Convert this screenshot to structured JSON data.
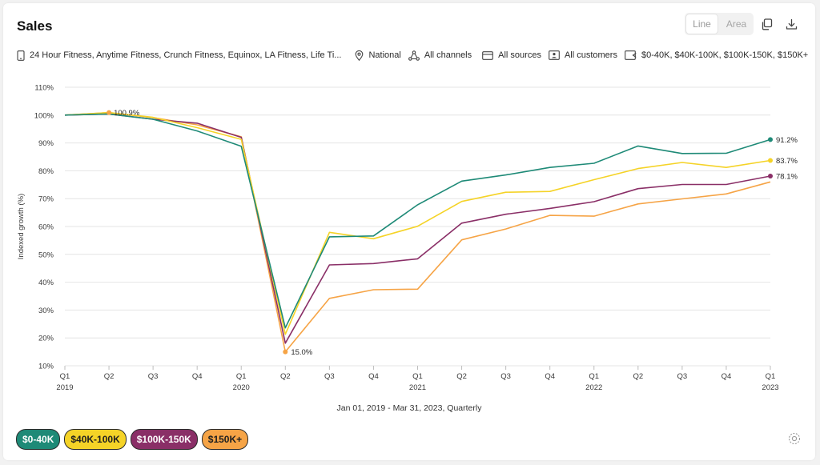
{
  "header": {
    "title": "Sales",
    "toggle": {
      "line_label": "Line",
      "area_label": "Area",
      "selected": "Line"
    }
  },
  "filters": {
    "brands": "24 Hour Fitness, Anytime Fitness, Crunch Fitness, Equinox, LA Fitness, Life Ti...",
    "geography": "National",
    "channels": "All channels",
    "sources": "All sources",
    "customers": "All customers",
    "income": "$0-40K, $40K-100K, $100K-150K, $150K+"
  },
  "colors": {
    "s0": "#1e8a77",
    "s1": "#f5d327",
    "s2": "#8a2f67",
    "s3": "#f6a446",
    "grid": "#e4e4e4",
    "axis_text": "#3a3a3a"
  },
  "chart_data": {
    "type": "line",
    "ylabel": "Indexed growth (%)",
    "xlabel": "Jan 01, 2019 - Mar 31, 2023, Quarterly",
    "ylim": [
      10,
      110
    ],
    "yticks": [
      10,
      20,
      30,
      40,
      50,
      60,
      70,
      80,
      90,
      100,
      110
    ],
    "ytick_labels": [
      "10%",
      "20%",
      "30%",
      "40%",
      "50%",
      "60%",
      "70%",
      "80%",
      "90%",
      "100%",
      "110%"
    ],
    "grid": true,
    "legend_placement": "bottom-left",
    "categories": [
      "Q1",
      "Q2",
      "Q3",
      "Q4",
      "Q1",
      "Q2",
      "Q3",
      "Q4",
      "Q1",
      "Q2",
      "Q3",
      "Q4",
      "Q1",
      "Q2",
      "Q3",
      "Q4",
      "Q1"
    ],
    "years": [
      "2019",
      "",
      "",
      "",
      "2020",
      "",
      "",
      "",
      "2021",
      "",
      "",
      "",
      "2022",
      "",
      "",
      "",
      "2023"
    ],
    "series": [
      {
        "name": "$0-40K",
        "values": [
          100,
          100.4,
          98.5,
          94.3,
          88.8,
          23.6,
          56.3,
          56.6,
          67.8,
          76.3,
          78.5,
          81.2,
          82.7,
          88.9,
          86.2,
          86.3,
          91.2
        ]
      },
      {
        "name": "$40K-100K",
        "values": [
          100,
          100.9,
          99.2,
          95.5,
          91.3,
          21.3,
          57.9,
          55.6,
          60.1,
          69.0,
          72.3,
          72.6,
          76.8,
          80.8,
          83.0,
          81.2,
          83.7
        ]
      },
      {
        "name": "$100K-150K",
        "values": [
          100,
          100.4,
          98.5,
          97.1,
          92.0,
          18.1,
          46.2,
          46.7,
          48.4,
          61.2,
          64.4,
          66.5,
          68.9,
          73.6,
          75.1,
          75.1,
          78.1
        ]
      },
      {
        "name": "$150K+",
        "values": [
          100,
          100.9,
          99.1,
          96.5,
          92.2,
          15.0,
          34.2,
          37.3,
          37.5,
          55.2,
          59.1,
          64.0,
          63.7,
          68.1,
          69.9,
          71.7,
          76.0
        ]
      }
    ],
    "annotations": [
      {
        "label": "100.9%",
        "series": 3,
        "index": 1
      },
      {
        "label": "15.0%",
        "series": 3,
        "index": 5
      },
      {
        "label": "91.2%",
        "series": 0,
        "index": 16
      },
      {
        "label": "83.7%",
        "series": 1,
        "index": 16
      },
      {
        "label": "78.1%",
        "series": 2,
        "index": 16
      }
    ]
  },
  "legend": {
    "items": [
      {
        "label": "$0-40K",
        "text_color": "#ffffff"
      },
      {
        "label": "$40K-100K",
        "text_color": "#1f1f1f"
      },
      {
        "label": "$100K-150K",
        "text_color": "#ffffff"
      },
      {
        "label": "$150K+",
        "text_color": "#1f1f1f"
      }
    ]
  }
}
